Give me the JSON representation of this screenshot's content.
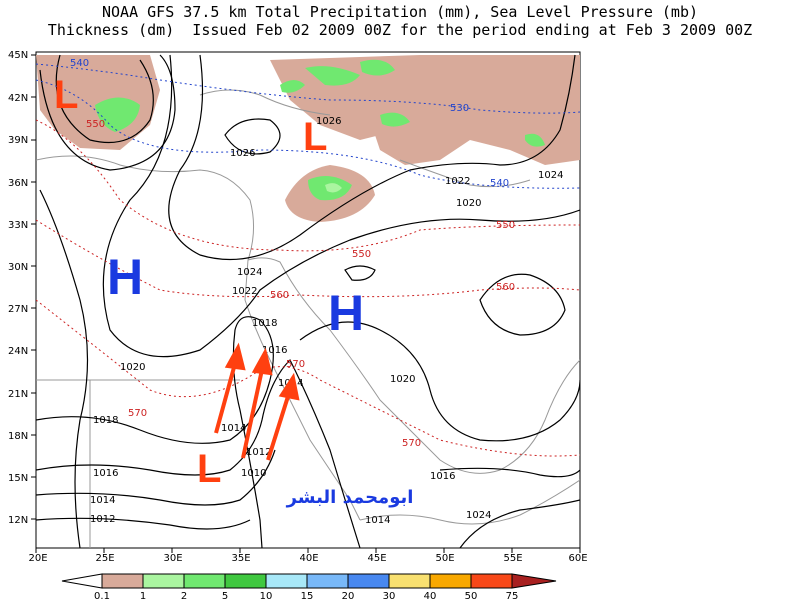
{
  "title": {
    "line1": "NOAA GFS 37.5 km Total Precipitation (mm), Sea Level Pressure (mb)",
    "line2": "Thickness (dm)  Issued Feb 02 2009 00Z for the period ending at Feb 3 2009 00Z"
  },
  "axes": {
    "lat_labels": [
      "45N",
      "42N",
      "39N",
      "36N",
      "33N",
      "30N",
      "27N",
      "24N",
      "21N",
      "18N",
      "15N",
      "12N"
    ],
    "lon_labels": [
      "20E",
      "25E",
      "30E",
      "35E",
      "40E",
      "45E",
      "50E",
      "55E",
      "60E"
    ]
  },
  "pressure_labels": [
    "1026",
    "1026",
    "1024",
    "1024",
    "1022",
    "1022",
    "1020",
    "1020",
    "1020",
    "1018",
    "1018",
    "1016",
    "1016",
    "1016",
    "1014",
    "1014",
    "1014",
    "1014",
    "1012",
    "1012",
    "1010",
    "1024"
  ],
  "thickness_labels": {
    "red": [
      "550",
      "550",
      "550",
      "560",
      "560",
      "570",
      "570",
      "570"
    ],
    "blue": [
      "540",
      "530",
      "540"
    ]
  },
  "markers": {
    "low": "L",
    "high": "H"
  },
  "watermark": "ابومحمد البشر",
  "legend": {
    "labels": [
      "0.1",
      "1",
      "2",
      "5",
      "10",
      "15",
      "20",
      "30",
      "40",
      "50",
      "75"
    ],
    "colors": [
      "#d8aa9a",
      "#aaf5a0",
      "#70e870",
      "#40c840",
      "#a8e8f8",
      "#78b8f8",
      "#4888f0",
      "#2860d8",
      "#f8e070",
      "#f8a800",
      "#f84818",
      "#a82020"
    ]
  }
}
